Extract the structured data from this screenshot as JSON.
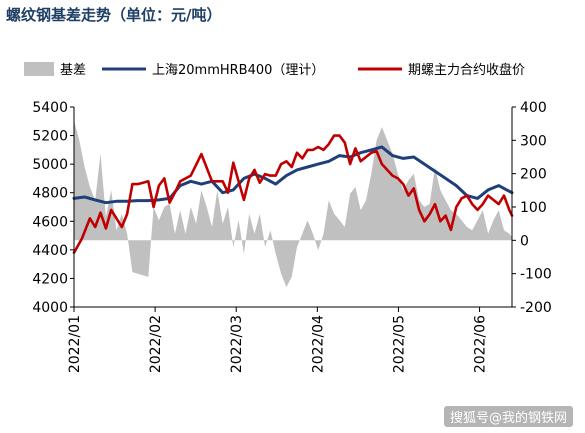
{
  "chart_data": {
    "type": "line",
    "title": "螺纹钢基差走势（单位：元/吨）",
    "legend": {
      "placement": "top",
      "entries": [
        {
          "name": "基差",
          "kind": "area",
          "color": "#c0c0c0"
        },
        {
          "name": "上海20mmHRB400（理计）",
          "kind": "line",
          "color": "#1f3f7a"
        },
        {
          "name": "期螺主力合约收盘价",
          "kind": "line",
          "color": "#c00000"
        }
      ]
    },
    "x_ticks": [
      "2022/01",
      "2022/02",
      "2022/03",
      "2022/04",
      "2022/05",
      "2022/06"
    ],
    "y_left": {
      "min": 4000,
      "max": 5400,
      "step": 200
    },
    "y_right": {
      "min": -200,
      "max": 400,
      "step": 100
    },
    "x_range": [
      0,
      165
    ],
    "series": [
      {
        "name": "上海20mmHRB400（理计）",
        "axis": "left",
        "color": "#1f3f7a",
        "x": [
          0,
          4,
          8,
          12,
          16,
          20,
          24,
          28,
          32,
          36,
          40,
          44,
          48,
          52,
          56,
          60,
          64,
          68,
          72,
          76,
          80,
          84,
          88,
          92,
          96,
          100,
          104,
          108,
          112,
          116,
          120,
          124,
          128,
          132,
          136,
          140,
          144,
          148,
          152,
          156,
          160,
          163,
          165
        ],
        "y": [
          4760,
          4770,
          4750,
          4730,
          4740,
          4740,
          4745,
          4745,
          4750,
          4760,
          4850,
          4880,
          4860,
          4880,
          4800,
          4820,
          4900,
          4930,
          4900,
          4860,
          4920,
          4960,
          4980,
          5000,
          5020,
          5060,
          5050,
          5080,
          5100,
          5120,
          5060,
          5040,
          5050,
          5000,
          4950,
          4900,
          4850,
          4780,
          4760,
          4820,
          4850,
          4820,
          4800
        ]
      },
      {
        "name": "期螺主力合约收盘价",
        "axis": "left",
        "color": "#c00000",
        "x": [
          0,
          3,
          6,
          8,
          10,
          12,
          14,
          16,
          18,
          20,
          22,
          24,
          26,
          28,
          30,
          32,
          34,
          36,
          38,
          40,
          44,
          48,
          52,
          56,
          58,
          60,
          62,
          64,
          66,
          68,
          70,
          72,
          74,
          76,
          78,
          80,
          82,
          84,
          86,
          88,
          90,
          92,
          94,
          96,
          98,
          100,
          102,
          104,
          106,
          108,
          110,
          112,
          114,
          116,
          118,
          120,
          122,
          124,
          126,
          128,
          130,
          132,
          134,
          136,
          138,
          140,
          142,
          144,
          146,
          148,
          150,
          152,
          154,
          156,
          158,
          160,
          162,
          164,
          165
        ],
        "y": [
          4380,
          4480,
          4620,
          4560,
          4660,
          4550,
          4680,
          4620,
          4560,
          4650,
          4860,
          4860,
          4870,
          4880,
          4700,
          4850,
          4900,
          4730,
          4800,
          4880,
          4920,
          5070,
          4880,
          4880,
          4800,
          5010,
          4880,
          4750,
          4900,
          4960,
          4870,
          4930,
          4920,
          4920,
          5000,
          5020,
          4980,
          5080,
          5040,
          5100,
          5100,
          5120,
          5100,
          5140,
          5200,
          5200,
          5150,
          5000,
          5110,
          5020,
          5050,
          5080,
          5090,
          5000,
          4960,
          4920,
          4900,
          4860,
          4780,
          4830,
          4680,
          4600,
          4650,
          4720,
          4600,
          4640,
          4540,
          4700,
          4760,
          4780,
          4720,
          4680,
          4720,
          4780,
          4750,
          4720,
          4780,
          4680,
          4640
        ]
      },
      {
        "name": "基差",
        "axis": "right",
        "type": "area",
        "color": "#c0c0c0",
        "x": [
          0,
          2,
          4,
          6,
          8,
          10,
          12,
          14,
          16,
          18,
          20,
          22,
          24,
          26,
          28,
          30,
          32,
          34,
          36,
          38,
          40,
          42,
          44,
          46,
          48,
          50,
          52,
          54,
          56,
          58,
          60,
          62,
          64,
          66,
          68,
          70,
          72,
          74,
          76,
          78,
          80,
          82,
          84,
          86,
          88,
          90,
          92,
          94,
          96,
          98,
          100,
          102,
          104,
          106,
          108,
          110,
          112,
          114,
          116,
          118,
          120,
          122,
          124,
          126,
          128,
          130,
          132,
          134,
          136,
          138,
          140,
          142,
          144,
          146,
          148,
          150,
          152,
          154,
          156,
          158,
          160,
          162,
          164,
          165
        ],
        "y": [
          360,
          300,
          220,
          160,
          120,
          260,
          70,
          150,
          30,
          80,
          20,
          -95,
          -100,
          -105,
          -110,
          100,
          60,
          100,
          110,
          20,
          90,
          20,
          100,
          50,
          150,
          100,
          40,
          150,
          50,
          100,
          -20,
          60,
          -40,
          80,
          20,
          80,
          -20,
          30,
          -40,
          -100,
          -140,
          -110,
          -20,
          20,
          60,
          20,
          -30,
          20,
          120,
          80,
          60,
          40,
          140,
          160,
          90,
          120,
          200,
          300,
          340,
          300,
          260,
          200,
          150,
          180,
          200,
          120,
          100,
          110,
          220,
          150,
          120,
          90,
          80,
          60,
          40,
          30,
          60,
          90,
          20,
          60,
          90,
          30,
          20,
          10
        ]
      }
    ]
  },
  "watermark": "搜狐号@我的钢铁网"
}
